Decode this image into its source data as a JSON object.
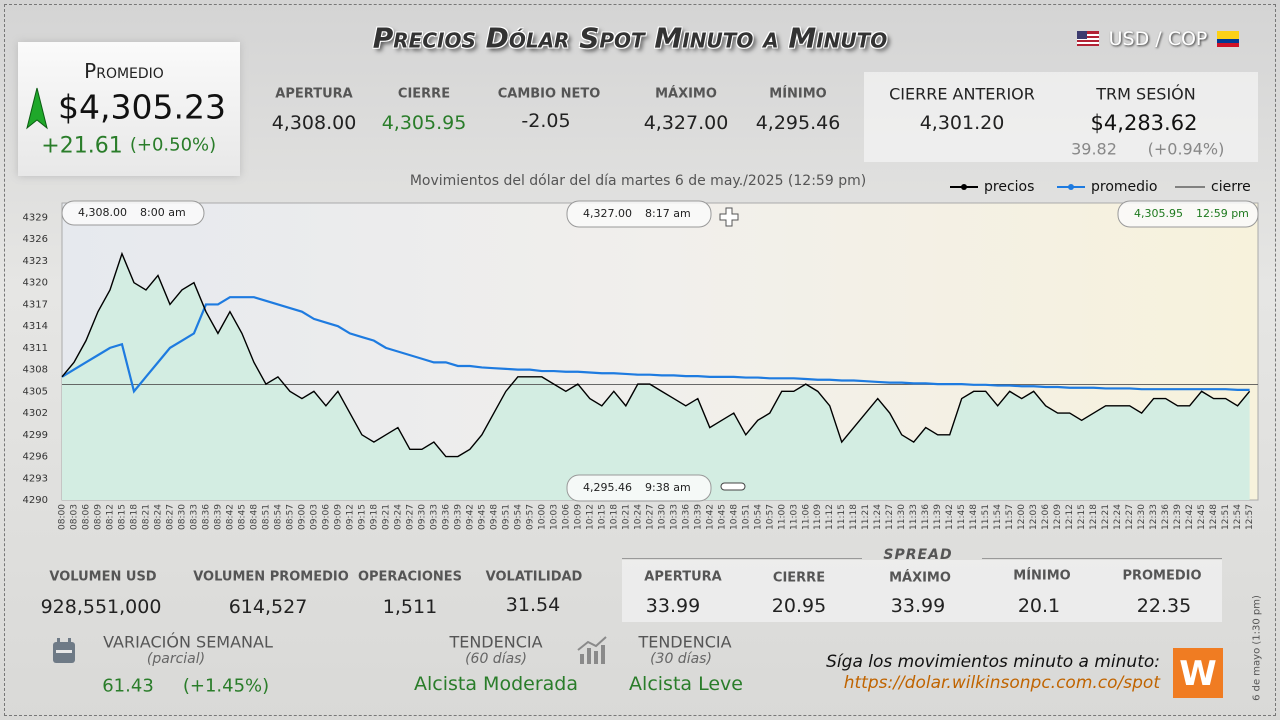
{
  "header": {
    "title": "Precios Dólar Spot Minuto a Minuto",
    "pair": "USD / COP"
  },
  "promedio": {
    "label": "Promedio",
    "value": "$4,305.23",
    "change": "+21.61",
    "change_pct": "(+0.50%)"
  },
  "session": [
    {
      "label": "APERTURA",
      "value": "4,308.00"
    },
    {
      "label": "CIERRE",
      "value": "4,305.95"
    },
    {
      "label": "CAMBIO NETO",
      "value": "-2.05"
    },
    {
      "label": "MÁXIMO",
      "value": "4,327.00"
    },
    {
      "label": "MÍNIMO",
      "value": "4,295.46"
    }
  ],
  "previous_close": {
    "label": "CIERRE ANTERIOR",
    "value": "4,301.20"
  },
  "trm": {
    "label": "TRM SESIÓN",
    "value": "$4,283.62",
    "change": "39.82",
    "change_pct": "(+0.94%)"
  },
  "chart_data": {
    "type": "line",
    "subtitle": "Movimientos del dólar del día martes 6 de may./2025 (12:59 pm)",
    "categories": [
      "08:00",
      "08:03",
      "08:06",
      "08:09",
      "08:12",
      "08:15",
      "08:18",
      "08:21",
      "08:24",
      "08:27",
      "08:30",
      "08:33",
      "08:36",
      "08:39",
      "08:42",
      "08:45",
      "08:48",
      "08:51",
      "08:54",
      "08:57",
      "09:00",
      "09:03",
      "09:06",
      "09:09",
      "09:12",
      "09:15",
      "09:18",
      "09:21",
      "09:24",
      "09:27",
      "09:30",
      "09:33",
      "09:36",
      "09:39",
      "09:42",
      "09:45",
      "09:48",
      "09:51",
      "09:54",
      "09:57",
      "10:00",
      "10:03",
      "10:06",
      "10:09",
      "10:12",
      "10:15",
      "10:18",
      "10:21",
      "10:24",
      "10:27",
      "10:30",
      "10:33",
      "10:36",
      "10:39",
      "10:42",
      "10:45",
      "10:48",
      "10:51",
      "10:54",
      "10:57",
      "11:00",
      "11:03",
      "11:06",
      "11:09",
      "11:12",
      "11:15",
      "11:18",
      "11:21",
      "11:24",
      "11:27",
      "11:30",
      "11:33",
      "11:36",
      "11:39",
      "11:42",
      "11:45",
      "11:48",
      "11:51",
      "11:54",
      "11:57",
      "12:00",
      "12:03",
      "12:06",
      "12:09",
      "12:12",
      "12:15",
      "12:18",
      "12:21",
      "12:24",
      "12:27",
      "12:30",
      "12:33",
      "12:36",
      "12:39",
      "12:42",
      "12:45",
      "12:48",
      "12:51",
      "12:54",
      "12:57"
    ],
    "series": [
      {
        "name": "precios",
        "color": "#000000",
        "values": [
          4307,
          4309,
          4312,
          4316,
          4319,
          4324,
          4320,
          4319,
          4321,
          4317,
          4319,
          4320,
          4316,
          4313,
          4316,
          4313,
          4309,
          4306,
          4307,
          4305,
          4304,
          4305,
          4303,
          4305,
          4302,
          4299,
          4298,
          4299,
          4300,
          4297,
          4297,
          4298,
          4296,
          4296,
          4297,
          4299,
          4302,
          4305,
          4307,
          4307,
          4307,
          4306,
          4305,
          4306,
          4304,
          4303,
          4305,
          4303,
          4306,
          4306,
          4305,
          4304,
          4303,
          4304,
          4300,
          4301,
          4302,
          4299,
          4301,
          4302,
          4305,
          4305,
          4306,
          4305,
          4303,
          4298,
          4300,
          4302,
          4304,
          4302,
          4299,
          4298,
          4300,
          4299,
          4299,
          4304,
          4305,
          4305,
          4303,
          4305,
          4304,
          4305,
          4303,
          4302,
          4302,
          4301,
          4302,
          4303,
          4303,
          4303,
          4302,
          4304,
          4304,
          4303,
          4303,
          4305,
          4304,
          4304,
          4303,
          4305
        ]
      },
      {
        "name": "promedio",
        "color": "#1e7be0",
        "values": [
          4307,
          4308,
          4309,
          4310,
          4311,
          4311.5,
          4305,
          4307,
          4309,
          4311,
          4312,
          4313,
          4317,
          4317,
          4318,
          4318,
          4318,
          4317.5,
          4317,
          4316.5,
          4316,
          4315,
          4314.5,
          4314,
          4313,
          4312.5,
          4312,
          4311,
          4310.5,
          4310,
          4309.5,
          4309,
          4309,
          4308.5,
          4308.5,
          4308.3,
          4308.2,
          4308.1,
          4308,
          4308,
          4307.8,
          4307.8,
          4307.7,
          4307.7,
          4307.6,
          4307.5,
          4307.5,
          4307.4,
          4307.3,
          4307.3,
          4307.2,
          4307.2,
          4307.1,
          4307.1,
          4307,
          4307,
          4307,
          4306.9,
          4306.9,
          4306.8,
          4306.8,
          4306.8,
          4306.7,
          4306.6,
          4306.6,
          4306.5,
          4306.5,
          4306.4,
          4306.3,
          4306.2,
          4306.2,
          4306.1,
          4306.1,
          4306,
          4306,
          4306,
          4305.9,
          4305.9,
          4305.8,
          4305.8,
          4305.7,
          4305.7,
          4305.6,
          4305.6,
          4305.5,
          4305.5,
          4305.5,
          4305.4,
          4305.4,
          4305.4,
          4305.3,
          4305.3,
          4305.3,
          4305.3,
          4305.3,
          4305.3,
          4305.3,
          4305.3,
          4305.2,
          4305.2
        ]
      }
    ],
    "reference_line": {
      "name": "cierre",
      "value": 4305.95,
      "color": "#555555"
    },
    "ylim": [
      4290,
      4331
    ],
    "yticks": [
      4290,
      4293,
      4296,
      4299,
      4302,
      4305,
      4308,
      4311,
      4314,
      4317,
      4320,
      4323,
      4326,
      4329
    ],
    "grid": false,
    "fill_color": "#d3ede2",
    "annotations": [
      {
        "price": "4,308.00",
        "time": "8:00 am"
      },
      {
        "price": "4,327.00",
        "time": "8:17 am"
      },
      {
        "price": "4,305.95",
        "time": "12:59 pm"
      },
      {
        "price": "4,295.46",
        "time": "9:38 am"
      }
    ]
  },
  "volume": [
    {
      "label": "VOLUMEN USD",
      "value": "928,551,000"
    },
    {
      "label": "VOLUMEN PROMEDIO",
      "value": "614,527"
    },
    {
      "label": "OPERACIONES",
      "value": "1,511"
    },
    {
      "label": "VOLATILIDAD",
      "value": "31.54"
    }
  ],
  "spread": {
    "title": "SPREAD",
    "items": [
      {
        "label": "APERTURA",
        "value": "33.99"
      },
      {
        "label": "CIERRE",
        "value": "20.95"
      },
      {
        "label": "MÁXIMO",
        "value": "33.99"
      },
      {
        "label": "MÍNIMO",
        "value": "20.1"
      },
      {
        "label": "PROMEDIO",
        "value": "22.35"
      }
    ]
  },
  "weekly": {
    "label": "VARIACIÓN SEMANAL",
    "note": "(parcial)",
    "value": "61.43",
    "pct": "(+1.45%)"
  },
  "trends": [
    {
      "label": "TENDENCIA",
      "note": "(60 días)",
      "value": "Alcista Moderada"
    },
    {
      "label": "TENDENCIA",
      "note": "(30 días)",
      "value": "Alcista Leve"
    }
  ],
  "footer": {
    "cta": "Síga los movimientos minuto a minuto:",
    "url": "https://dolar.wilkinsonpc.com.co/spot",
    "logo": "W",
    "stamp": "6 de mayo (1:30 pm)"
  }
}
